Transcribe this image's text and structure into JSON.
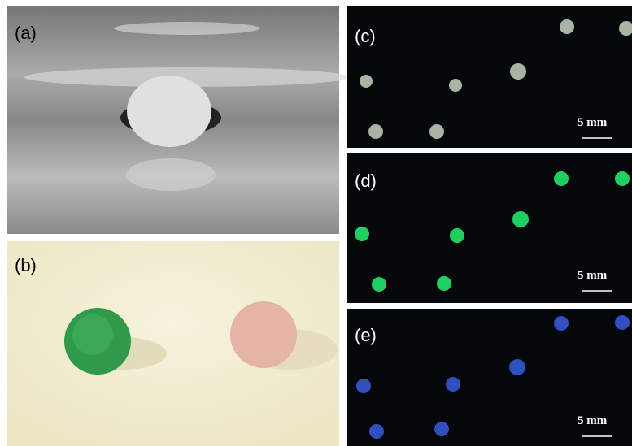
{
  "panels": [
    {
      "label": "(a)"
    },
    {
      "label": "(b)"
    },
    {
      "label": "(c)",
      "scale": "5 mm"
    },
    {
      "label": "(d)",
      "scale": "5 mm"
    },
    {
      "label": "(e)",
      "scale": "5 mm"
    }
  ]
}
